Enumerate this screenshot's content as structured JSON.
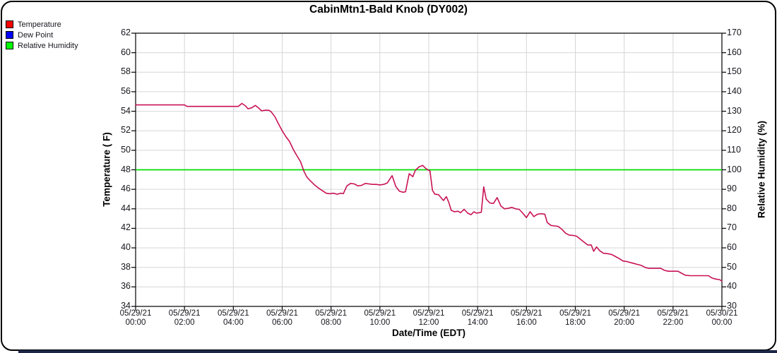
{
  "chart_data": {
    "type": "line",
    "title": "CabinMtn1-Bald Knob (DY002)",
    "xlabel": "Date/Time (EDT)",
    "grid": true,
    "legend_position": "top-left",
    "legend": [
      {
        "label": "Temperature",
        "swatch": "#ff0000"
      },
      {
        "label": "Dew Point",
        "swatch": "#0000ff"
      },
      {
        "label": "Relative Humidity",
        "swatch": "#00ff00"
      }
    ],
    "left_axis": {
      "label": "Temperature ( F)",
      "min": 34,
      "max": 62,
      "step": 2
    },
    "right_axis": {
      "label": "Relative Humidity (%)",
      "min": 30,
      "max": 170,
      "step": 10
    },
    "x_axis": {
      "hours_range": [
        0,
        24
      ],
      "tick_interval_hours": 2,
      "tick_labels": [
        {
          "date": "05/29/21",
          "time": "00:00"
        },
        {
          "date": "05/29/21",
          "time": "02:00"
        },
        {
          "date": "05/29/21",
          "time": "04:00"
        },
        {
          "date": "05/29/21",
          "time": "06:00"
        },
        {
          "date": "05/29/21",
          "time": "08:00"
        },
        {
          "date": "05/29/21",
          "time": "10:00"
        },
        {
          "date": "05/29/21",
          "time": "12:00"
        },
        {
          "date": "05/29/21",
          "time": "14:00"
        },
        {
          "date": "05/29/21",
          "time": "16:00"
        },
        {
          "date": "05/29/21",
          "time": "18:00"
        },
        {
          "date": "05/29/21",
          "time": "20:00"
        },
        {
          "date": "05/29/21",
          "time": "22:00"
        },
        {
          "date": "05/30/21",
          "time": "00:00"
        }
      ]
    },
    "colors": {
      "temperature_line": "#c81254",
      "humidity_line": "#00dd00",
      "grid": "#d6d6d6",
      "frame": "#000000"
    },
    "series": [
      {
        "name": "Temperature",
        "axis": "left",
        "color": "#c81254",
        "points_hour_tempF": [
          [
            0,
            54.65
          ],
          [
            0.4,
            54.65
          ],
          [
            0.8,
            54.65
          ],
          [
            1.2,
            54.65
          ],
          [
            1.6,
            54.65
          ],
          [
            2.0,
            54.65
          ],
          [
            2.1,
            54.5
          ],
          [
            2.5,
            54.5
          ],
          [
            3.0,
            54.5
          ],
          [
            3.5,
            54.5
          ],
          [
            4.0,
            54.5
          ],
          [
            4.2,
            54.5
          ],
          [
            4.35,
            54.8
          ],
          [
            4.5,
            54.55
          ],
          [
            4.6,
            54.25
          ],
          [
            4.75,
            54.35
          ],
          [
            4.9,
            54.6
          ],
          [
            5.05,
            54.3
          ],
          [
            5.15,
            54.05
          ],
          [
            5.3,
            54.1
          ],
          [
            5.45,
            54.1
          ],
          [
            5.55,
            53.95
          ],
          [
            5.7,
            53.45
          ],
          [
            5.85,
            52.7
          ],
          [
            6.0,
            52.0
          ],
          [
            6.15,
            51.4
          ],
          [
            6.3,
            50.9
          ],
          [
            6.45,
            50.1
          ],
          [
            6.6,
            49.45
          ],
          [
            6.75,
            48.85
          ],
          [
            6.9,
            47.8
          ],
          [
            7.0,
            47.3
          ],
          [
            7.1,
            47.0
          ],
          [
            7.3,
            46.5
          ],
          [
            7.5,
            46.1
          ],
          [
            7.65,
            45.85
          ],
          [
            7.8,
            45.6
          ],
          [
            7.95,
            45.55
          ],
          [
            8.1,
            45.6
          ],
          [
            8.25,
            45.5
          ],
          [
            8.4,
            45.6
          ],
          [
            8.5,
            45.55
          ],
          [
            8.65,
            46.35
          ],
          [
            8.8,
            46.6
          ],
          [
            8.95,
            46.55
          ],
          [
            9.1,
            46.35
          ],
          [
            9.25,
            46.4
          ],
          [
            9.4,
            46.6
          ],
          [
            9.55,
            46.55
          ],
          [
            9.7,
            46.5
          ],
          [
            9.85,
            46.5
          ],
          [
            10.0,
            46.45
          ],
          [
            10.15,
            46.5
          ],
          [
            10.3,
            46.65
          ],
          [
            10.5,
            47.4
          ],
          [
            10.65,
            46.3
          ],
          [
            10.8,
            45.8
          ],
          [
            10.95,
            45.7
          ],
          [
            11.05,
            45.75
          ],
          [
            11.2,
            47.6
          ],
          [
            11.35,
            47.3
          ],
          [
            11.45,
            47.95
          ],
          [
            11.6,
            48.3
          ],
          [
            11.75,
            48.45
          ],
          [
            11.85,
            48.2
          ],
          [
            11.95,
            48.0
          ],
          [
            12.05,
            47.9
          ],
          [
            12.15,
            45.9
          ],
          [
            12.25,
            45.5
          ],
          [
            12.4,
            45.45
          ],
          [
            12.5,
            45.15
          ],
          [
            12.6,
            44.85
          ],
          [
            12.72,
            45.25
          ],
          [
            12.82,
            44.65
          ],
          [
            12.92,
            43.85
          ],
          [
            13.05,
            43.7
          ],
          [
            13.2,
            43.75
          ],
          [
            13.3,
            43.6
          ],
          [
            13.45,
            43.95
          ],
          [
            13.6,
            43.55
          ],
          [
            13.73,
            43.4
          ],
          [
            13.85,
            43.7
          ],
          [
            13.95,
            43.55
          ],
          [
            14.05,
            43.6
          ],
          [
            14.15,
            43.65
          ],
          [
            14.25,
            46.25
          ],
          [
            14.35,
            45.0
          ],
          [
            14.5,
            44.6
          ],
          [
            14.65,
            44.55
          ],
          [
            14.8,
            45.15
          ],
          [
            14.95,
            44.3
          ],
          [
            15.1,
            44.0
          ],
          [
            15.25,
            44.05
          ],
          [
            15.4,
            44.15
          ],
          [
            15.55,
            44.0
          ],
          [
            15.7,
            43.95
          ],
          [
            15.85,
            43.55
          ],
          [
            16.0,
            43.1
          ],
          [
            16.15,
            43.7
          ],
          [
            16.3,
            43.2
          ],
          [
            16.45,
            43.45
          ],
          [
            16.6,
            43.5
          ],
          [
            16.75,
            43.45
          ],
          [
            16.85,
            42.6
          ],
          [
            17.0,
            42.3
          ],
          [
            17.15,
            42.25
          ],
          [
            17.3,
            42.2
          ],
          [
            17.45,
            41.9
          ],
          [
            17.6,
            41.5
          ],
          [
            17.75,
            41.3
          ],
          [
            17.9,
            41.28
          ],
          [
            18.05,
            41.2
          ],
          [
            18.2,
            40.9
          ],
          [
            18.35,
            40.6
          ],
          [
            18.5,
            40.3
          ],
          [
            18.65,
            40.3
          ],
          [
            18.75,
            39.65
          ],
          [
            18.87,
            40.1
          ],
          [
            19.0,
            39.7
          ],
          [
            19.15,
            39.45
          ],
          [
            19.35,
            39.4
          ],
          [
            19.5,
            39.3
          ],
          [
            19.65,
            39.1
          ],
          [
            19.8,
            38.9
          ],
          [
            19.95,
            38.65
          ],
          [
            20.1,
            38.6
          ],
          [
            20.25,
            38.5
          ],
          [
            20.4,
            38.4
          ],
          [
            20.55,
            38.3
          ],
          [
            20.7,
            38.2
          ],
          [
            20.85,
            38.0
          ],
          [
            21.0,
            37.9
          ],
          [
            21.3,
            37.9
          ],
          [
            21.5,
            37.9
          ],
          [
            21.65,
            37.7
          ],
          [
            21.8,
            37.6
          ],
          [
            22.0,
            37.6
          ],
          [
            22.2,
            37.6
          ],
          [
            22.35,
            37.4
          ],
          [
            22.5,
            37.2
          ],
          [
            22.7,
            37.15
          ],
          [
            23.0,
            37.15
          ],
          [
            23.25,
            37.15
          ],
          [
            23.45,
            37.15
          ],
          [
            23.6,
            36.9
          ],
          [
            23.75,
            36.8
          ],
          [
            23.9,
            36.75
          ],
          [
            24.0,
            36.6
          ]
        ]
      },
      {
        "name": "Relative Humidity",
        "axis": "right",
        "color": "#00dd00",
        "points_hour_pct": [
          [
            0,
            100
          ],
          [
            24,
            100
          ]
        ]
      }
    ]
  }
}
